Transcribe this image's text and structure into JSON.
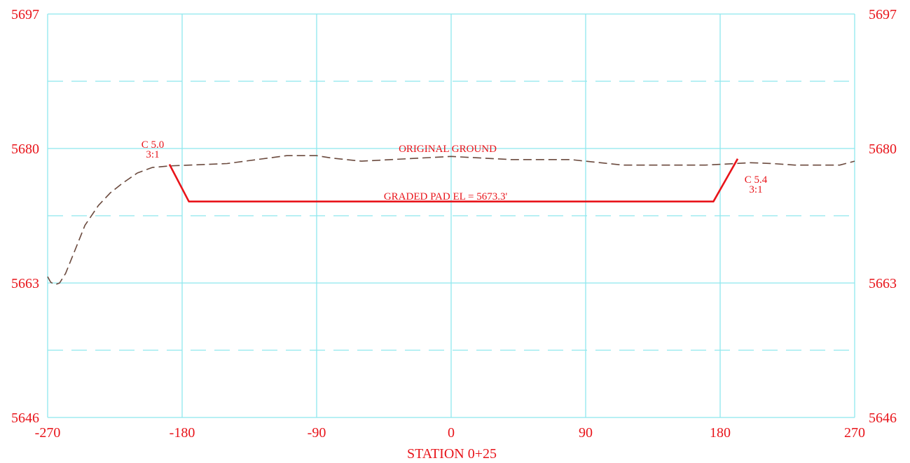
{
  "chart_data": {
    "type": "line",
    "title": "",
    "xlabel": "STATION 0+25",
    "ylabel": "",
    "xlim": [
      -270,
      270
    ],
    "ylim": [
      5646,
      5697
    ],
    "x_ticks": [
      -270,
      -180,
      -90,
      0,
      90,
      180,
      270
    ],
    "x_tick_labels": [
      "-270",
      "-180",
      "-90",
      "0",
      "90",
      "180",
      "270"
    ],
    "y_ticks": [
      5646,
      5663,
      5680,
      5697
    ],
    "y_tick_labels": [
      "5646",
      "5663",
      "5680",
      "5697"
    ],
    "y_minor_gridlines": [
      5654.5,
      5671.5,
      5688.5
    ],
    "grid": true,
    "y_labels_both_sides": true,
    "colors": {
      "grid": "#8ee8ee",
      "labels": "#e8141a",
      "ground": "#6b4a3e",
      "pad": "#e8141a"
    },
    "series": [
      {
        "name": "ORIGINAL GROUND",
        "style": "dashed",
        "x": [
          -270,
          -268,
          -265,
          -262,
          -258,
          -252,
          -245,
          -236,
          -228,
          -220,
          -210,
          -200,
          -188,
          -175,
          -150,
          -130,
          -110,
          -100,
          -90,
          -80,
          -60,
          -40,
          -20,
          0,
          20,
          40,
          60,
          80,
          90,
          100,
          115,
          130,
          150,
          170,
          190,
          200,
          215,
          230,
          250,
          260,
          270
        ],
        "y": [
          5663.8,
          5663.1,
          5662.8,
          5663.0,
          5664.2,
          5667.0,
          5670.3,
          5672.8,
          5674.4,
          5675.6,
          5676.9,
          5677.6,
          5677.8,
          5677.9,
          5678.1,
          5678.6,
          5679.1,
          5679.1,
          5679.1,
          5678.8,
          5678.4,
          5678.6,
          5678.8,
          5679.0,
          5678.8,
          5678.6,
          5678.6,
          5678.6,
          5678.4,
          5678.2,
          5677.9,
          5677.9,
          5677.9,
          5677.9,
          5678.1,
          5678.2,
          5678.1,
          5677.9,
          5677.9,
          5677.9,
          5678.4
        ]
      },
      {
        "name": "GRADED PAD EL = 5673.3'",
        "style": "solid",
        "x": [
          -188.5,
          -175.5,
          175.5,
          191.7
        ],
        "y": [
          5678.0,
          5673.3,
          5673.3,
          5678.7
        ]
      }
    ],
    "annotations": {
      "ground_label": "ORIGINAL GROUND",
      "pad_label": "GRADED PAD EL = 5673.3'",
      "left_cut": "C 5.0",
      "left_slope": "3:1",
      "right_cut": "C 5.4",
      "right_slope": "3:1"
    }
  }
}
